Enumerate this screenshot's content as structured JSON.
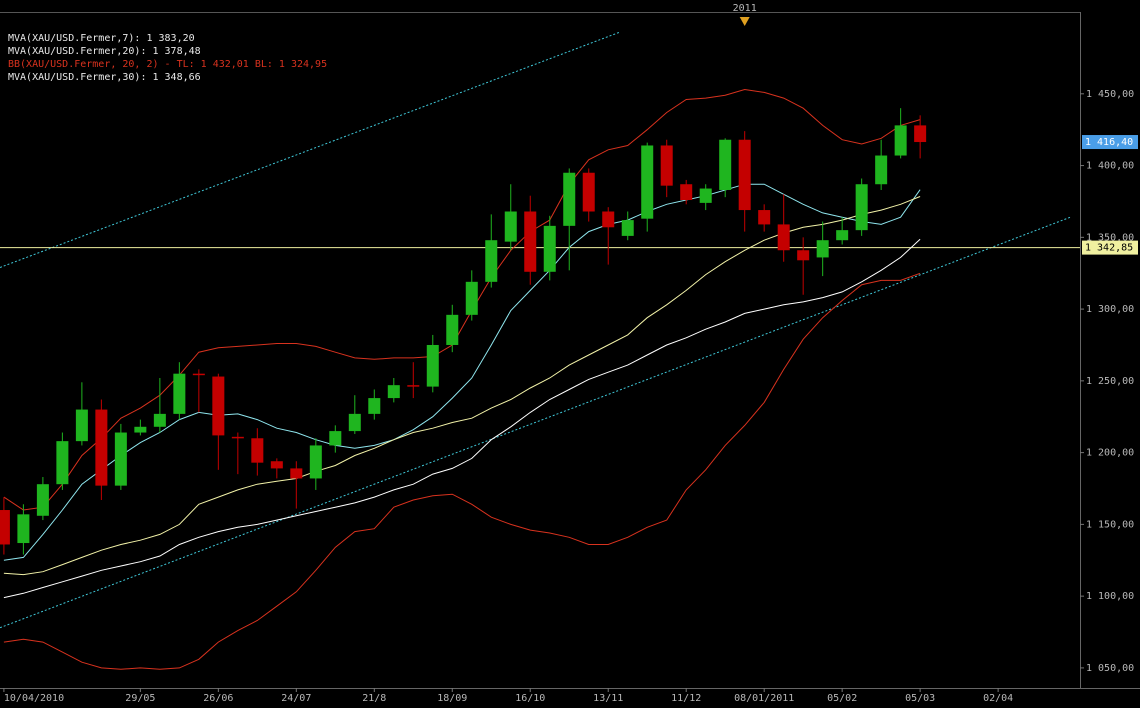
{
  "chart_data": {
    "type": "candlestick",
    "open": [
      1160,
      1137,
      1156,
      1178,
      1208,
      1230,
      1177,
      1214,
      1218,
      1227,
      1255,
      1253,
      1211,
      1210,
      1194,
      1189,
      1182,
      1205,
      1215,
      1227,
      1238,
      1247,
      1246,
      1275,
      1296,
      1319,
      1347,
      1368,
      1326,
      1358,
      1395,
      1368,
      1351,
      1363,
      1414,
      1387,
      1374,
      1383,
      1418,
      1369,
      1359,
      1341,
      1336,
      1348,
      1355,
      1387,
      1407,
      1428
    ],
    "high": [
      1169,
      1164,
      1183,
      1214,
      1249,
      1237,
      1220,
      1223,
      1252,
      1263,
      1258,
      1255,
      1214,
      1217,
      1196,
      1194,
      1210,
      1219,
      1240,
      1244,
      1252,
      1263,
      1282,
      1303,
      1327,
      1366,
      1387,
      1379,
      1365,
      1398,
      1398,
      1371,
      1368,
      1416,
      1418,
      1390,
      1387,
      1419,
      1424,
      1373,
      1380,
      1350,
      1361,
      1364,
      1391,
      1418,
      1440,
      1435
    ],
    "low": [
      1129,
      1129,
      1153,
      1174,
      1205,
      1167,
      1174,
      1212,
      1214,
      1223,
      1228,
      1188,
      1185,
      1184,
      1182,
      1161,
      1174,
      1200,
      1213,
      1223,
      1235,
      1238,
      1242,
      1270,
      1292,
      1315,
      1341,
      1317,
      1320,
      1327,
      1361,
      1331,
      1348,
      1354,
      1378,
      1373,
      1369,
      1378,
      1354,
      1354,
      1333,
      1310,
      1323,
      1345,
      1351,
      1383,
      1405,
      1405
    ],
    "close": [
      1136,
      1157,
      1178,
      1208,
      1230,
      1177,
      1214,
      1218,
      1227,
      1255,
      1254,
      1212,
      1210,
      1193,
      1189,
      1182,
      1205,
      1215,
      1227,
      1238,
      1247,
      1246,
      1275,
      1296,
      1319,
      1348,
      1368,
      1326,
      1358,
      1395,
      1368,
      1357,
      1362,
      1414,
      1386,
      1376,
      1384,
      1418,
      1369,
      1359,
      1341,
      1334,
      1348,
      1355,
      1387,
      1407,
      1428,
      1416.4
    ],
    "up_color": "#1fb51f",
    "down_color": "#c40000",
    "series": [
      {
        "name": "MVA(XAU/USD.Fermer,7): 1 383,20",
        "color": "#8fe6ee",
        "values": [
          1125,
          1127,
          1143,
          1160,
          1178,
          1188,
          1198,
          1207,
          1214,
          1223,
          1228,
          1226,
          1227,
          1223,
          1217,
          1214,
          1209,
          1205,
          1203,
          1205,
          1209,
          1216,
          1225,
          1238,
          1252,
          1275,
          1299,
          1313,
          1327,
          1343,
          1354,
          1359,
          1362,
          1368,
          1373,
          1376,
          1379,
          1383,
          1387,
          1387,
          1380,
          1373,
          1367,
          1364,
          1361,
          1359,
          1364,
          1383.2
        ]
      },
      {
        "name": "MVA(XAU/USD.Fermer,20): 1 378,48",
        "color": "#f2f2a8",
        "values": [
          1116,
          1115,
          1117,
          1122,
          1127,
          1132,
          1136,
          1139,
          1143,
          1150,
          1164,
          1169,
          1174,
          1178,
          1180,
          1182,
          1187,
          1191,
          1198,
          1203,
          1209,
          1214,
          1217,
          1221,
          1224,
          1231,
          1237,
          1245,
          1252,
          1261,
          1268,
          1275,
          1282,
          1294,
          1303,
          1313,
          1324,
          1333,
          1341,
          1348,
          1353,
          1357,
          1359,
          1362,
          1366,
          1369,
          1373,
          1378.48
        ]
      },
      {
        "name": "BB(XAU/USD.Fermer, 20, 2) - TL: 1 432,01 BL: 1 324,95",
        "color": "#d8321e",
        "upper": [
          1169,
          1160,
          1162,
          1178,
          1198,
          1210,
          1224,
          1231,
          1240,
          1254,
          1270,
          1273,
          1274,
          1275,
          1276,
          1276,
          1274,
          1270,
          1266,
          1265,
          1266,
          1266,
          1267,
          1275,
          1299,
          1322,
          1341,
          1354,
          1362,
          1387,
          1404,
          1411,
          1414,
          1425,
          1437,
          1446,
          1447,
          1449,
          1453,
          1451,
          1447,
          1440,
          1428,
          1418,
          1415,
          1419,
          1428,
          1432.01
        ],
        "lower": [
          1068,
          1070,
          1068,
          1061,
          1054,
          1050,
          1049,
          1050,
          1049,
          1050,
          1056,
          1068,
          1076,
          1083,
          1093,
          1103,
          1118,
          1134,
          1145,
          1147,
          1162,
          1167,
          1170,
          1171,
          1164,
          1155,
          1150,
          1146,
          1144,
          1141,
          1136,
          1136,
          1141,
          1148,
          1153,
          1174,
          1188,
          1205,
          1219,
          1235,
          1258,
          1279,
          1294,
          1306,
          1317,
          1320,
          1320,
          1324.95
        ]
      },
      {
        "name": "MVA(XAU/USD.Fermer,30): 1 348,66",
        "color": "#ffffff",
        "values": [
          1099,
          1102,
          1106,
          1110,
          1114,
          1118,
          1121,
          1124,
          1128,
          1136,
          1141,
          1145,
          1148,
          1150,
          1153,
          1156,
          1159,
          1162,
          1165,
          1169,
          1174,
          1178,
          1185,
          1189,
          1196,
          1209,
          1218,
          1228,
          1237,
          1244,
          1251,
          1256,
          1261,
          1268,
          1275,
          1280,
          1286,
          1291,
          1297,
          1300,
          1303,
          1305,
          1308,
          1312,
          1319,
          1327,
          1336,
          1348.66
        ]
      }
    ],
    "trendlines": [
      {
        "start": [
          -0.2,
          1329
        ],
        "end": [
          31.6,
          1493
        ],
        "color": "#3fc8d8"
      },
      {
        "start": [
          -0.2,
          1078
        ],
        "end": [
          54.7,
          1364
        ],
        "color": "#3fc8d8"
      }
    ],
    "hline": {
      "value": 1342.85,
      "label": "1 342,85",
      "color": "#f0f0a0"
    },
    "last_price": {
      "value": 1416.4,
      "label": "1 416,40",
      "color": "#4a9ee8"
    },
    "year_marker": {
      "position": 38,
      "label": "2011",
      "color": "#e0a020"
    },
    "xlim": [
      -0.2,
      55.2
    ],
    "ylim": [
      1036,
      1507
    ],
    "yticks": [
      {
        "value": 1050,
        "label": "1 050,00"
      },
      {
        "value": 1100,
        "label": "1 100,00"
      },
      {
        "value": 1150,
        "label": "1 150,00"
      },
      {
        "value": 1200,
        "label": "1 200,00"
      },
      {
        "value": 1250,
        "label": "1 250,00"
      },
      {
        "value": 1300,
        "label": "1 300,00"
      },
      {
        "value": 1350,
        "label": "1 350,00"
      },
      {
        "value": 1400,
        "label": "1 400,00"
      },
      {
        "value": 1450,
        "label": "1 450,00"
      }
    ],
    "xticks": [
      {
        "value": 0,
        "label": "10/04/2010"
      },
      {
        "value": 7,
        "label": "29/05"
      },
      {
        "value": 11,
        "label": "26/06"
      },
      {
        "value": 15,
        "label": "24/07"
      },
      {
        "value": 19,
        "label": "21/8"
      },
      {
        "value": 23,
        "label": "18/09"
      },
      {
        "value": 27,
        "label": "16/10"
      },
      {
        "value": 31,
        "label": "13/11"
      },
      {
        "value": 35,
        "label": "11/12"
      },
      {
        "value": 39,
        "label": "08/01/2011"
      },
      {
        "value": 43,
        "label": "05/02"
      },
      {
        "value": 47,
        "label": "05/03"
      },
      {
        "value": 51,
        "label": "02/04"
      }
    ]
  }
}
